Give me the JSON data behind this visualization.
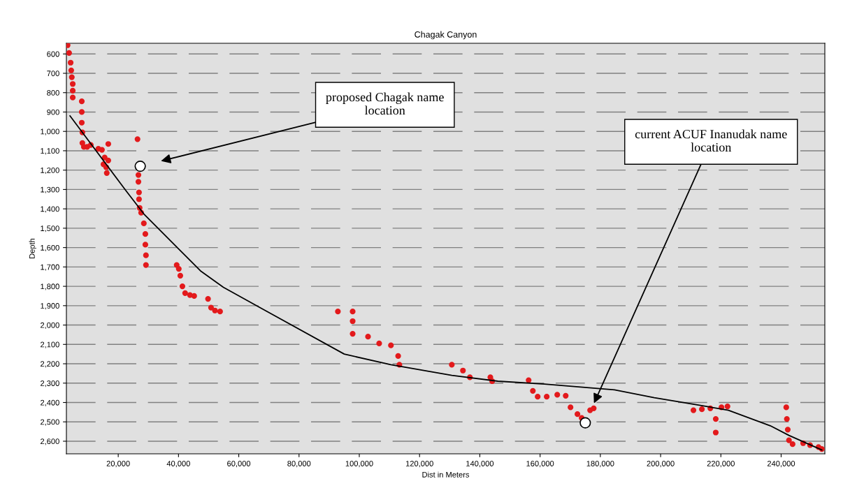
{
  "chart_data": {
    "type": "scatter",
    "title": "Chagak Canyon",
    "xlabel": "Dist in Meters",
    "ylabel": "Depth",
    "xlim": [
      2800,
      254500
    ],
    "ylim": [
      2665,
      545
    ],
    "xticks": [
      {
        "value": 20000,
        "label": "20,000"
      },
      {
        "value": 40000,
        "label": "40,000"
      },
      {
        "value": 60000,
        "label": "60,000"
      },
      {
        "value": 80000,
        "label": "80,000"
      },
      {
        "value": 100000,
        "label": "100,000"
      },
      {
        "value": 120000,
        "label": "120,000"
      },
      {
        "value": 140000,
        "label": "140,000"
      },
      {
        "value": 160000,
        "label": "160,000"
      },
      {
        "value": 180000,
        "label": "180,000"
      },
      {
        "value": 200000,
        "label": "200,000"
      },
      {
        "value": 220000,
        "label": "220,000"
      },
      {
        "value": 240000,
        "label": "240,000"
      }
    ],
    "yticks": [
      600,
      700,
      800,
      900,
      {
        "value": 1000,
        "label": "1,000"
      },
      {
        "value": 1100,
        "label": "1,100"
      },
      {
        "value": 1200,
        "label": "1,200"
      },
      {
        "value": 1300,
        "label": "1,300"
      },
      {
        "value": 1400,
        "label": "1,400"
      },
      {
        "value": 1500,
        "label": "1,500"
      },
      {
        "value": 1600,
        "label": "1,600"
      },
      {
        "value": 1700,
        "label": "1,700"
      },
      {
        "value": 1800,
        "label": "1,800"
      },
      {
        "value": 1900,
        "label": "1,900"
      },
      {
        "value": 2000,
        "label": "2,000"
      },
      {
        "value": 2100,
        "label": "2,100"
      },
      {
        "value": 2200,
        "label": "2,200"
      },
      {
        "value": 2300,
        "label": "2,300"
      },
      {
        "value": 2400,
        "label": "2,400"
      },
      {
        "value": 2500,
        "label": "2,500"
      },
      {
        "value": 2600,
        "label": "2,600"
      }
    ],
    "grid": "y",
    "legend": false,
    "series": [
      {
        "color": "#e31a1c",
        "marker": "circle",
        "x": [
          3200,
          3700,
          4200,
          4400,
          4600,
          4900,
          4900,
          4900,
          7900,
          7900,
          7900,
          8100,
          8100,
          8600,
          9700,
          10900,
          13400,
          14600,
          16700,
          15500,
          15100,
          16000,
          16700,
          16200,
          26400,
          26700,
          26700,
          26900,
          26900,
          27100,
          27600,
          28500,
          29000,
          29000,
          29200,
          29200,
          39400,
          40100,
          40600,
          41300,
          42200,
          43800,
          45200,
          49800,
          50800,
          52100,
          53800,
          92900,
          97800,
          97800,
          97800,
          102900,
          106600,
          110500,
          112900,
          113300,
          130700,
          134400,
          136700,
          143500,
          144100,
          156200,
          157600,
          159200,
          162200,
          165700,
          168500,
          170100,
          172400,
          173800,
          176600,
          177800,
          210900,
          213700,
          216500,
          218300,
          218300,
          220200,
          222200,
          241700,
          241900,
          242200,
          242600,
          243800,
          247300,
          249600,
          252400,
          253500
        ],
        "values": [
          555,
          595,
          645,
          685,
          720,
          755,
          790,
          825,
          845,
          900,
          955,
          1005,
          1060,
          1080,
          1080,
          1070,
          1090,
          1095,
          1065,
          1135,
          1170,
          1185,
          1150,
          1215,
          1040,
          1225,
          1260,
          1315,
          1350,
          1395,
          1420,
          1475,
          1530,
          1585,
          1640,
          1690,
          1690,
          1710,
          1745,
          1800,
          1835,
          1845,
          1850,
          1865,
          1910,
          1925,
          1930,
          1930,
          1930,
          1980,
          2045,
          2060,
          2095,
          2105,
          2160,
          2205,
          2205,
          2235,
          2270,
          2270,
          2290,
          2285,
          2340,
          2370,
          2370,
          2360,
          2365,
          2425,
          2460,
          2480,
          2440,
          2430,
          2440,
          2435,
          2430,
          2485,
          2555,
          2425,
          2420,
          2425,
          2485,
          2540,
          2595,
          2615,
          2610,
          2620,
          2630,
          2640
        ]
      },
      {
        "type": "line",
        "color": "#000000",
        "marker": "none",
        "line_style": "solid",
        "x": [
          4000,
          22500,
          28700,
          47300,
          54900,
          68800,
          95000,
          110500,
          130700,
          146000,
          161500,
          184700,
          197900,
          213200,
          222500,
          236400,
          242600,
          253500
        ],
        "values": [
          920,
          1305,
          1430,
          1720,
          1805,
          1925,
          2150,
          2205,
          2260,
          2290,
          2305,
          2335,
          2375,
          2415,
          2440,
          2520,
          2570,
          2645
        ]
      },
      {
        "type": "scatter",
        "color": "#ffffff",
        "marker": "circle",
        "x": [
          27300,
          175000
        ],
        "values": [
          1180,
          2505
        ]
      }
    ],
    "annotations": [
      "proposed Chagak name location",
      "current ACUF Inanudak name location"
    ]
  }
}
